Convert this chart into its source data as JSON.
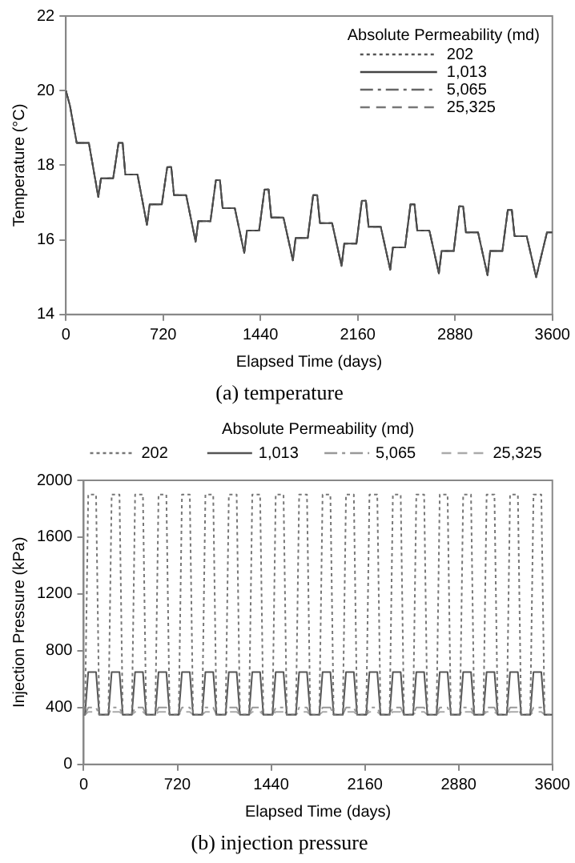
{
  "chart_data": [
    {
      "type": "line",
      "title": "(a) temperature",
      "xlabel": "Elapsed Time (days)",
      "ylabel": "Temperature (°C)",
      "legend_title": "Absolute Permeability (md)",
      "legend": "top right",
      "grid": false,
      "xlim": [
        0,
        3600
      ],
      "xticks": [
        0,
        720,
        1440,
        2160,
        2880,
        3600
      ],
      "ylim": [
        14,
        22
      ],
      "yticks": [
        14,
        16,
        18,
        20,
        22
      ],
      "x": [
        0,
        30,
        80,
        170,
        240,
        260,
        350,
        390,
        420,
        440,
        530,
        600,
        620,
        710,
        750,
        780,
        800,
        890,
        960,
        980,
        1070,
        1110,
        1140,
        1160,
        1250,
        1320,
        1340,
        1430,
        1470,
        1500,
        1520,
        1610,
        1680,
        1700,
        1790,
        1830,
        1860,
        1880,
        1970,
        2040,
        2060,
        2150,
        2190,
        2220,
        2240,
        2330,
        2400,
        2420,
        2510,
        2550,
        2580,
        2600,
        2690,
        2760,
        2780,
        2870,
        2910,
        2940,
        2960,
        3050,
        3120,
        3140,
        3230,
        3270,
        3300,
        3320,
        3410,
        3480,
        3560,
        3600
      ],
      "series": [
        {
          "name": "202",
          "color": "#555555",
          "line_style": "dotted",
          "values": [
            20,
            19.6,
            18.6,
            18.6,
            17.15,
            17.65,
            17.65,
            18.6,
            18.6,
            17.75,
            17.75,
            16.4,
            16.95,
            16.95,
            17.95,
            17.95,
            17.2,
            17.2,
            15.95,
            16.5,
            16.5,
            17.6,
            17.6,
            16.85,
            16.85,
            15.65,
            16.25,
            16.25,
            17.35,
            17.35,
            16.6,
            16.6,
            15.45,
            16.05,
            16.05,
            17.2,
            17.2,
            16.45,
            16.45,
            15.3,
            15.9,
            15.9,
            17.05,
            17.05,
            16.35,
            16.35,
            15.2,
            15.8,
            15.8,
            16.95,
            16.95,
            16.25,
            16.25,
            15.1,
            15.7,
            15.7,
            16.9,
            16.9,
            16.2,
            16.2,
            15.05,
            15.7,
            15.7,
            16.8,
            16.8,
            16.1,
            16.1,
            15,
            16.2,
            16.2
          ]
        },
        {
          "name": "1,013",
          "color": "#444444",
          "line_style": "solid",
          "values": [
            20,
            19.6,
            18.6,
            18.6,
            17.15,
            17.65,
            17.65,
            18.6,
            18.6,
            17.75,
            17.75,
            16.4,
            16.95,
            16.95,
            17.95,
            17.95,
            17.2,
            17.2,
            15.95,
            16.5,
            16.5,
            17.6,
            17.6,
            16.85,
            16.85,
            15.65,
            16.25,
            16.25,
            17.35,
            17.35,
            16.6,
            16.6,
            15.45,
            16.05,
            16.05,
            17.2,
            17.2,
            16.45,
            16.45,
            15.3,
            15.9,
            15.9,
            17.05,
            17.05,
            16.35,
            16.35,
            15.2,
            15.8,
            15.8,
            16.95,
            16.95,
            16.25,
            16.25,
            15.1,
            15.7,
            15.7,
            16.9,
            16.9,
            16.2,
            16.2,
            15.05,
            15.7,
            15.7,
            16.8,
            16.8,
            16.1,
            16.1,
            15,
            16.2,
            16.2
          ]
        },
        {
          "name": "5,065",
          "color": "#666666",
          "line_style": "dashdot",
          "values": [
            20,
            19.6,
            18.6,
            18.6,
            17.15,
            17.65,
            17.65,
            18.6,
            18.6,
            17.75,
            17.75,
            16.4,
            16.95,
            16.95,
            17.95,
            17.95,
            17.2,
            17.2,
            15.95,
            16.5,
            16.5,
            17.6,
            17.6,
            16.85,
            16.85,
            15.65,
            16.25,
            16.25,
            17.35,
            17.35,
            16.6,
            16.6,
            15.45,
            16.05,
            16.05,
            17.2,
            17.2,
            16.45,
            16.45,
            15.3,
            15.9,
            15.9,
            17.05,
            17.05,
            16.35,
            16.35,
            15.2,
            15.8,
            15.8,
            16.95,
            16.95,
            16.25,
            16.25,
            15.1,
            15.7,
            15.7,
            16.9,
            16.9,
            16.2,
            16.2,
            15.05,
            15.7,
            15.7,
            16.8,
            16.8,
            16.1,
            16.1,
            15,
            16.2,
            16.2
          ]
        },
        {
          "name": "25,325",
          "color": "#777777",
          "line_style": "dashed",
          "values": [
            20,
            19.6,
            18.6,
            18.6,
            17.15,
            17.65,
            17.65,
            18.6,
            18.6,
            17.75,
            17.75,
            16.4,
            16.95,
            16.95,
            17.95,
            17.95,
            17.2,
            17.2,
            15.95,
            16.5,
            16.5,
            17.6,
            17.6,
            16.85,
            16.85,
            15.65,
            16.25,
            16.25,
            17.35,
            17.35,
            16.6,
            16.6,
            15.45,
            16.05,
            16.05,
            17.2,
            17.2,
            16.45,
            16.45,
            15.3,
            15.9,
            15.9,
            17.05,
            17.05,
            16.35,
            16.35,
            15.2,
            15.8,
            15.8,
            16.95,
            16.95,
            16.25,
            16.25,
            15.1,
            15.7,
            15.7,
            16.9,
            16.9,
            16.2,
            16.2,
            15.05,
            15.7,
            15.7,
            16.8,
            16.8,
            16.1,
            16.1,
            15,
            16.2,
            16.2
          ]
        }
      ]
    },
    {
      "type": "line",
      "title": "(b) injection pressure",
      "xlabel": "Elapsed Time (days)",
      "ylabel": "Injection Pressure (kPa)",
      "legend_title": "Absolute Permeability (md)",
      "legend": "top",
      "grid": false,
      "xlim": [
        0,
        3600
      ],
      "xticks": [
        0,
        720,
        1440,
        2160,
        2880,
        3600
      ],
      "ylim": [
        0,
        2000
      ],
      "yticks": [
        0,
        400,
        800,
        1200,
        1600,
        2000
      ],
      "x": [
        0,
        10,
        35,
        95,
        120,
        190,
        215,
        275,
        300,
        370,
        395,
        455,
        480,
        550,
        575,
        635,
        660,
        730,
        755,
        815,
        840,
        910,
        935,
        995,
        1020,
        1090,
        1115,
        1175,
        1200,
        1270,
        1295,
        1355,
        1380,
        1450,
        1475,
        1535,
        1560,
        1630,
        1655,
        1715,
        1740,
        1810,
        1835,
        1895,
        1920,
        1990,
        2015,
        2075,
        2100,
        2170,
        2195,
        2255,
        2280,
        2350,
        2375,
        2435,
        2460,
        2530,
        2555,
        2615,
        2640,
        2710,
        2735,
        2795,
        2820,
        2890,
        2915,
        2975,
        3000,
        3070,
        3095,
        3155,
        3180,
        3250,
        3275,
        3335,
        3360,
        3430,
        3455,
        3515,
        3540,
        3600
      ],
      "series": [
        {
          "name": "202",
          "color": "#777777",
          "line_style": "dotted",
          "values": [
            350,
            350,
            1900,
            1900,
            350,
            350,
            1900,
            1900,
            350,
            350,
            1900,
            1900,
            350,
            350,
            1900,
            1900,
            350,
            350,
            1900,
            1900,
            350,
            350,
            1900,
            1900,
            350,
            350,
            1900,
            1900,
            350,
            350,
            1900,
            1900,
            350,
            350,
            1900,
            1900,
            350,
            350,
            1900,
            1900,
            350,
            350,
            1900,
            1900,
            350,
            350,
            1900,
            1900,
            350,
            350,
            1900,
            1900,
            350,
            350,
            1900,
            1900,
            350,
            350,
            1900,
            1900,
            350,
            350,
            1900,
            1900,
            350,
            350,
            1900,
            1900,
            350,
            350,
            1900,
            1900,
            350,
            350,
            1900,
            1900,
            350,
            350,
            1900,
            1900,
            350,
            350
          ]
        },
        {
          "name": "1,013",
          "color": "#555555",
          "line_style": "solid",
          "values": [
            350,
            350,
            650,
            650,
            350,
            350,
            650,
            650,
            350,
            350,
            650,
            650,
            350,
            350,
            650,
            650,
            350,
            350,
            650,
            650,
            350,
            350,
            650,
            650,
            350,
            350,
            650,
            650,
            350,
            350,
            650,
            650,
            350,
            350,
            650,
            650,
            350,
            350,
            650,
            650,
            350,
            350,
            650,
            650,
            350,
            350,
            650,
            650,
            350,
            350,
            650,
            650,
            350,
            350,
            650,
            650,
            350,
            350,
            650,
            650,
            350,
            350,
            650,
            650,
            350,
            350,
            650,
            650,
            350,
            350,
            650,
            650,
            350,
            350,
            650,
            650,
            350,
            350,
            650,
            650,
            350,
            350
          ]
        },
        {
          "name": "5,065",
          "color": "#999999",
          "line_style": "dashdot",
          "values": [
            350,
            350,
            400,
            400,
            350,
            350,
            400,
            400,
            350,
            350,
            400,
            400,
            350,
            350,
            400,
            400,
            350,
            350,
            400,
            400,
            350,
            350,
            400,
            400,
            350,
            350,
            400,
            400,
            350,
            350,
            400,
            400,
            350,
            350,
            400,
            400,
            350,
            350,
            400,
            400,
            350,
            350,
            400,
            400,
            350,
            350,
            400,
            400,
            350,
            350,
            400,
            400,
            350,
            350,
            400,
            400,
            350,
            350,
            400,
            400,
            350,
            350,
            400,
            400,
            350,
            350,
            400,
            400,
            350,
            350,
            400,
            400,
            350,
            350,
            400,
            400,
            350,
            350,
            400,
            400,
            350,
            350
          ]
        },
        {
          "name": "25,325",
          "color": "#aaaaaa",
          "line_style": "dashed",
          "values": [
            350,
            350,
            370,
            370,
            350,
            350,
            370,
            370,
            350,
            350,
            370,
            370,
            350,
            350,
            370,
            370,
            350,
            350,
            370,
            370,
            350,
            350,
            370,
            370,
            350,
            350,
            370,
            370,
            350,
            350,
            370,
            370,
            350,
            350,
            370,
            370,
            350,
            350,
            370,
            370,
            350,
            350,
            370,
            370,
            350,
            350,
            370,
            370,
            350,
            350,
            370,
            370,
            350,
            350,
            370,
            370,
            350,
            350,
            370,
            370,
            350,
            350,
            370,
            370,
            350,
            350,
            370,
            370,
            350,
            350,
            370,
            370,
            350,
            350,
            370,
            370,
            350,
            350,
            370,
            370,
            350,
            350
          ]
        }
      ]
    }
  ]
}
